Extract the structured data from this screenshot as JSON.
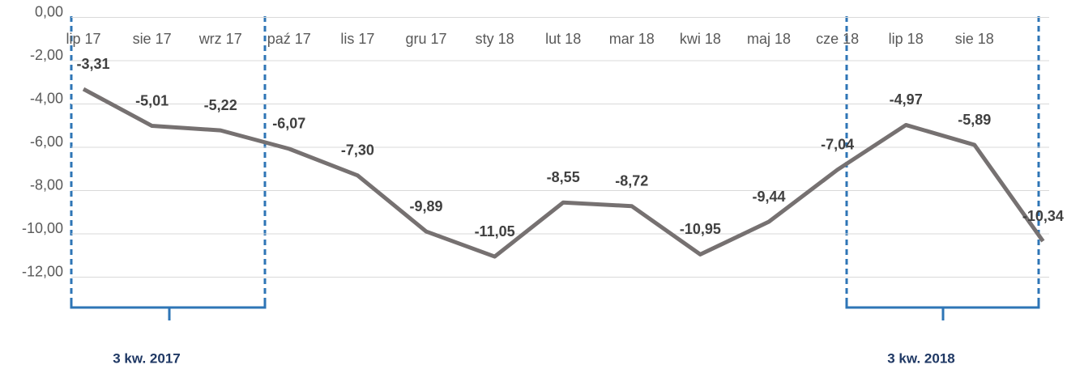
{
  "chart_data": {
    "type": "line",
    "categories": [
      "lip 17",
      "sie 17",
      "wrz 17",
      "paź 17",
      "lis 17",
      "gru 17",
      "sty 18",
      "lut 18",
      "mar 18",
      "kwi 18",
      "maj 18",
      "cze 18",
      "lip 18",
      "sie 18",
      null
    ],
    "series": [
      {
        "color": "#767171",
        "values": [
          -3.31,
          -5.01,
          -5.22,
          -6.07,
          -7.3,
          -9.89,
          -11.05,
          -8.55,
          -8.72,
          -10.95,
          -9.44,
          -7.04,
          -4.97,
          -5.89,
          -10.34
        ],
        "value_labels": [
          "-3,31",
          "-5,01",
          "-5,22",
          "-6,07",
          "-7,30",
          "-9,89",
          "-11,05",
          "-8,55",
          "-8,72",
          "-10,95",
          "-9,44",
          "-7,04",
          "-4,97",
          "-5,89",
          "-10,34"
        ]
      }
    ],
    "ylim": [
      -14,
      0
    ],
    "yticks": [
      {
        "value": 0,
        "label": "0,00"
      },
      {
        "value": -2,
        "label": "-2,00"
      },
      {
        "value": -4,
        "label": "-4,00"
      },
      {
        "value": -6,
        "label": "-6,00"
      },
      {
        "value": -8,
        "label": "-8,00"
      },
      {
        "value": -10,
        "label": "-10,00"
      },
      {
        "value": -12,
        "label": "-12,00"
      }
    ],
    "grid": true,
    "annotations": [
      "3 kw. 2017",
      "3 kw. 2018"
    ]
  }
}
